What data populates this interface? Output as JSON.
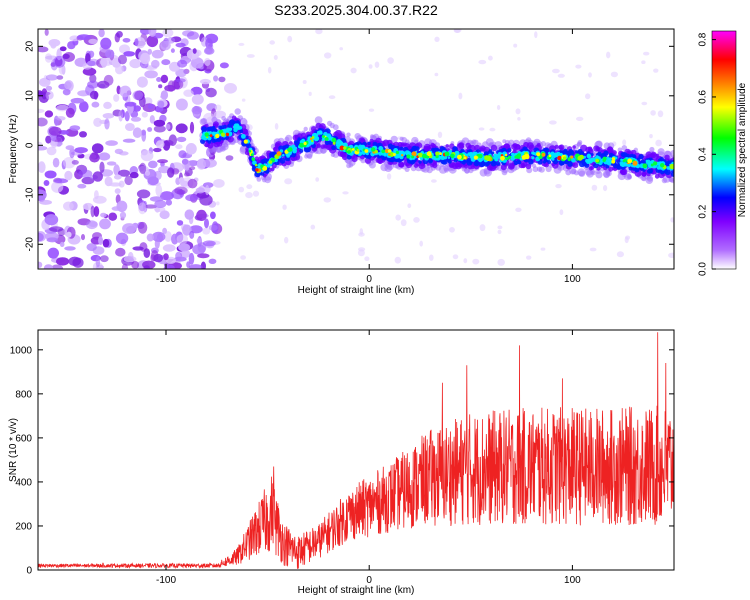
{
  "title": "S233.2025.304.00.37.R22",
  "chart_data": [
    {
      "type": "heatmap",
      "name": "spectrogram",
      "xlabel": "Height of straight line (km)",
      "ylabel": "Frequency (Hz)",
      "xlim": [
        -163,
        150
      ],
      "ylim": [
        -25,
        23.5
      ],
      "xticks": [
        -100,
        0,
        100
      ],
      "yticks": [
        -20,
        -10,
        0,
        10,
        20
      ],
      "colorbar": {
        "label": "Normalized spectral amplitude",
        "range": [
          0,
          0.83
        ],
        "ticks": [
          0.0,
          0.2,
          0.4,
          0.6,
          0.8
        ],
        "colors": [
          "#ffffff",
          "#7f00ff",
          "#0000ff",
          "#00ffff",
          "#00ff00",
          "#ffff00",
          "#ff7f00",
          "#ff0000",
          "#ff00ff"
        ]
      },
      "noise_region_x": [
        -163,
        -75
      ],
      "ridge": [
        {
          "x": -80,
          "f": 2.0
        },
        {
          "x": -70,
          "f": 2.5
        },
        {
          "x": -65,
          "f": 4.0
        },
        {
          "x": -60,
          "f": 0.5
        },
        {
          "x": -55,
          "f": -5.0
        },
        {
          "x": -50,
          "f": -4.0
        },
        {
          "x": -45,
          "f": -2.0
        },
        {
          "x": -40,
          "f": -1.5
        },
        {
          "x": -35,
          "f": 0.0
        },
        {
          "x": -30,
          "f": 0.5
        },
        {
          "x": -25,
          "f": 2.0
        },
        {
          "x": -20,
          "f": 1.5
        },
        {
          "x": -10,
          "f": -1.0
        },
        {
          "x": 0,
          "f": -1.0
        },
        {
          "x": 20,
          "f": -2.0
        },
        {
          "x": 40,
          "f": -2.0
        },
        {
          "x": 60,
          "f": -2.5
        },
        {
          "x": 80,
          "f": -2.0
        },
        {
          "x": 100,
          "f": -2.5
        },
        {
          "x": 120,
          "f": -3.0
        },
        {
          "x": 140,
          "f": -4.0
        },
        {
          "x": 150,
          "f": -4.5
        }
      ]
    },
    {
      "type": "line",
      "name": "snr",
      "xlabel": "Height of straight line (km)",
      "ylabel": "SNR (10 * v/v)",
      "xlim": [
        -163,
        150
      ],
      "ylim": [
        0,
        1090
      ],
      "xticks": [
        -100,
        0,
        100
      ],
      "yticks": [
        0,
        200,
        400,
        600,
        800,
        1000
      ],
      "color": "#ee2222",
      "envelope": [
        {
          "x": -163,
          "mean": 20,
          "amp": 8
        },
        {
          "x": -75,
          "mean": 20,
          "amp": 10
        },
        {
          "x": -65,
          "mean": 60,
          "amp": 40
        },
        {
          "x": -55,
          "mean": 180,
          "amp": 120
        },
        {
          "x": -48,
          "mean": 260,
          "amp": 180
        },
        {
          "x": -42,
          "mean": 120,
          "amp": 100
        },
        {
          "x": -35,
          "mean": 80,
          "amp": 80
        },
        {
          "x": -25,
          "mean": 130,
          "amp": 80
        },
        {
          "x": -10,
          "mean": 250,
          "amp": 120
        },
        {
          "x": 10,
          "mean": 330,
          "amp": 160
        },
        {
          "x": 30,
          "mean": 420,
          "amp": 220
        },
        {
          "x": 50,
          "mean": 460,
          "amp": 260
        },
        {
          "x": 80,
          "mean": 470,
          "amp": 270
        },
        {
          "x": 120,
          "mean": 470,
          "amp": 270
        },
        {
          "x": 150,
          "mean": 470,
          "amp": 280
        }
      ],
      "peaks": [
        {
          "x": -47,
          "y": 470
        },
        {
          "x": 36,
          "y": 850
        },
        {
          "x": 48,
          "y": 930
        },
        {
          "x": 74,
          "y": 1020
        },
        {
          "x": 95,
          "y": 870
        },
        {
          "x": 142,
          "y": 1080
        },
        {
          "x": 146,
          "y": 940
        }
      ]
    }
  ]
}
